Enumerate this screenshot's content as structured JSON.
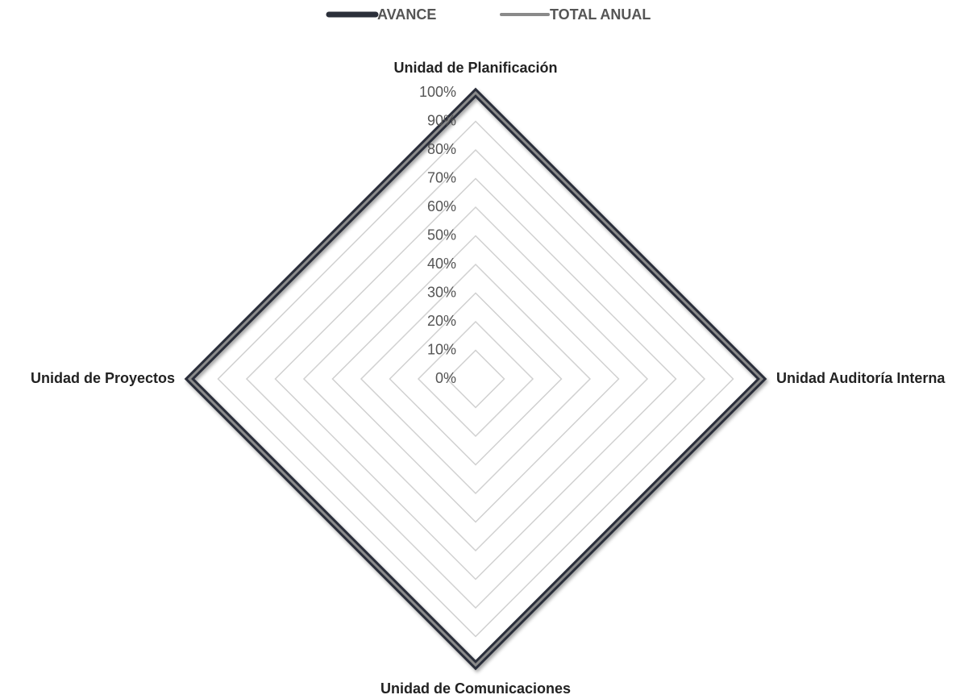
{
  "chart_data": {
    "type": "radar",
    "categories": [
      "Unidad de Planificación",
      "Unidad Auditoría Interna",
      "Unidad de Comunicaciones",
      "Unidad de Proyectos"
    ],
    "series": [
      {
        "name": "AVANCE",
        "color": "#2b2f3a",
        "values": [
          100,
          100,
          100,
          100
        ]
      },
      {
        "name": "TOTAL ANUAL",
        "color": "#8a8a8a",
        "values": [
          100,
          100,
          100,
          100
        ]
      }
    ],
    "ylim": [
      0,
      100
    ],
    "yticks": [
      {
        "value": 0,
        "label": "0%"
      },
      {
        "value": 10,
        "label": "10%"
      },
      {
        "value": 20,
        "label": "20%"
      },
      {
        "value": 30,
        "label": "30%"
      },
      {
        "value": 40,
        "label": "40%"
      },
      {
        "value": 50,
        "label": "50%"
      },
      {
        "value": 60,
        "label": "60%"
      },
      {
        "value": 70,
        "label": "70%"
      },
      {
        "value": 80,
        "label": "80%"
      },
      {
        "value": 90,
        "label": "90%"
      },
      {
        "value": 100,
        "label": "100%"
      }
    ],
    "grid": true,
    "legend": "top"
  }
}
